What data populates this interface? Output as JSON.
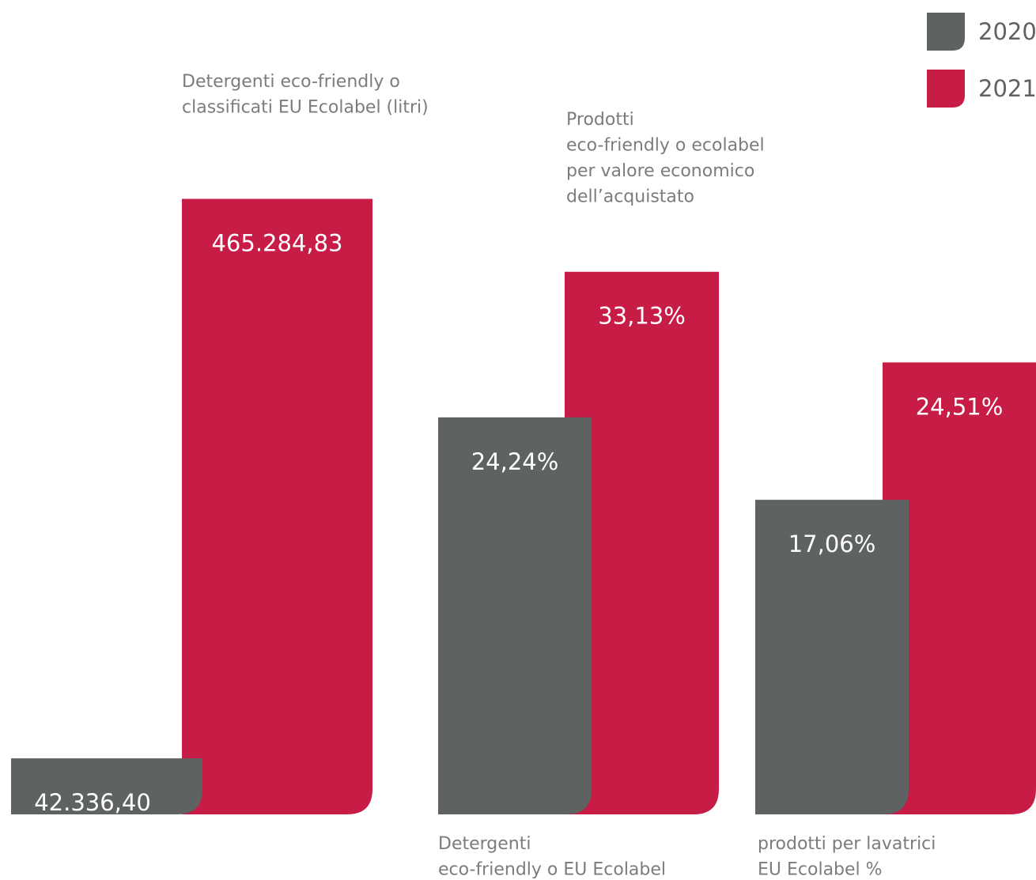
{
  "chart_data": [
    {
      "type": "bar",
      "label_lines": [
        "Detergenti eco-friendly o",
        "classificati EU Ecolabel (litri)"
      ],
      "label_position": "top",
      "series": [
        {
          "name": "2020",
          "color": "#5f6263",
          "values": [
            42336.4
          ],
          "value_labels": [
            "42.336,40"
          ]
        },
        {
          "name": "2021",
          "color": "#c71c46",
          "values": [
            465284.83
          ],
          "value_labels": [
            "465.284,83"
          ]
        }
      ],
      "ylim": [
        0,
        520000
      ]
    },
    {
      "type": "bar",
      "label_lines": [
        "Prodotti",
        "eco-friendly o ecolabel",
        "per valore economico",
        "dell’acquistato"
      ],
      "label_position": "top",
      "series": [
        {
          "name": "2020",
          "color": "#5f6263",
          "values": [
            24.24
          ],
          "value_labels": [
            "24,24%"
          ]
        },
        {
          "name": "2021",
          "color": "#c71c46",
          "values": [
            33.13
          ],
          "value_labels": [
            "33,13%"
          ]
        }
      ],
      "ylim": [
        0,
        42
      ]
    },
    {
      "type": "bar",
      "label_lines": [
        "prodotti per lavatrici",
        "EU Ecolabel %"
      ],
      "label_position": "bottom",
      "series": [
        {
          "name": "2020",
          "color": "#5f6263",
          "values": [
            17.06
          ],
          "value_labels": [
            "17,06%"
          ]
        },
        {
          "name": "2021",
          "color": "#c71c46",
          "values": [
            24.51
          ],
          "value_labels": [
            "24,51%"
          ]
        }
      ],
      "ylim": [
        0,
        37.3
      ]
    }
  ],
  "bottom_note_lines": [
    "Detergenti",
    "eco-friendly o EU Ecolabel"
  ]
}
